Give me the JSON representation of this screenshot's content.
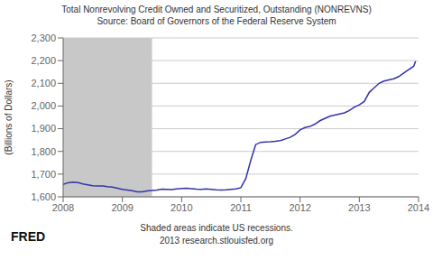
{
  "chart_data": {
    "type": "line",
    "title": "Total Nonrevolving Credit Owned and Securitized, Outstanding (NONREVNS)",
    "subtitle": "Source: Board of Governors of the Federal Reserve System",
    "ylabel": "(Billions of Dollars)",
    "annotations": [
      "Shaded areas indicate US recessions.",
      "2013 research.stlouisfed.org",
      "FRED"
    ],
    "shaded_regions": [
      {
        "start": 2008.0,
        "end": 2009.5,
        "color": "#c8c8c8"
      }
    ],
    "color": "#3333aa",
    "grid": "y",
    "xlim": [
      2008.0,
      2014.0
    ],
    "xticks": [
      2008,
      2009,
      2010,
      2011,
      2012,
      2013,
      2014
    ],
    "ylim": [
      1600,
      2300
    ],
    "yticks": [
      {
        "value": 1600,
        "label": "1,600"
      },
      {
        "value": 1700,
        "label": "1,700"
      },
      {
        "value": 1800,
        "label": "1,800"
      },
      {
        "value": 1900,
        "label": "1,900"
      },
      {
        "value": 2000,
        "label": "2,000"
      },
      {
        "value": 2100,
        "label": "2,100"
      },
      {
        "value": 2200,
        "label": "2,200"
      },
      {
        "value": 2300,
        "label": "2,300"
      }
    ],
    "x": [
      2008.0,
      2008.083,
      2008.167,
      2008.25,
      2008.333,
      2008.417,
      2008.5,
      2008.583,
      2008.667,
      2008.75,
      2008.833,
      2008.917,
      2009.0,
      2009.083,
      2009.167,
      2009.25,
      2009.333,
      2009.417,
      2009.5,
      2009.583,
      2009.667,
      2009.75,
      2009.833,
      2009.917,
      2010.0,
      2010.083,
      2010.167,
      2010.25,
      2010.333,
      2010.417,
      2010.5,
      2010.583,
      2010.667,
      2010.75,
      2010.833,
      2010.917,
      2011.0,
      2011.083,
      2011.167,
      2011.25,
      2011.333,
      2011.417,
      2011.5,
      2011.583,
      2011.667,
      2011.75,
      2011.833,
      2011.917,
      2012.0,
      2012.083,
      2012.167,
      2012.25,
      2012.333,
      2012.417,
      2012.5,
      2012.583,
      2012.667,
      2012.75,
      2012.833,
      2012.917,
      2013.0,
      2013.083,
      2013.167,
      2013.25,
      2013.333,
      2013.417,
      2013.5,
      2013.583,
      2013.667,
      2013.75,
      2013.833,
      2013.917,
      2013.95
    ],
    "values": [
      1655,
      1662,
      1665,
      1663,
      1657,
      1653,
      1649,
      1648,
      1648,
      1645,
      1643,
      1638,
      1633,
      1630,
      1627,
      1622,
      1622,
      1626,
      1628,
      1630,
      1634,
      1633,
      1632,
      1635,
      1637,
      1638,
      1636,
      1634,
      1633,
      1635,
      1633,
      1631,
      1630,
      1631,
      1633,
      1635,
      1640,
      1680,
      1760,
      1830,
      1840,
      1842,
      1843,
      1845,
      1848,
      1855,
      1862,
      1875,
      1895,
      1905,
      1910,
      1920,
      1935,
      1945,
      1955,
      1960,
      1965,
      1970,
      1980,
      1995,
      2005,
      2020,
      2060,
      2080,
      2100,
      2110,
      2115,
      2120,
      2130,
      2145,
      2160,
      2175,
      2198
    ]
  }
}
